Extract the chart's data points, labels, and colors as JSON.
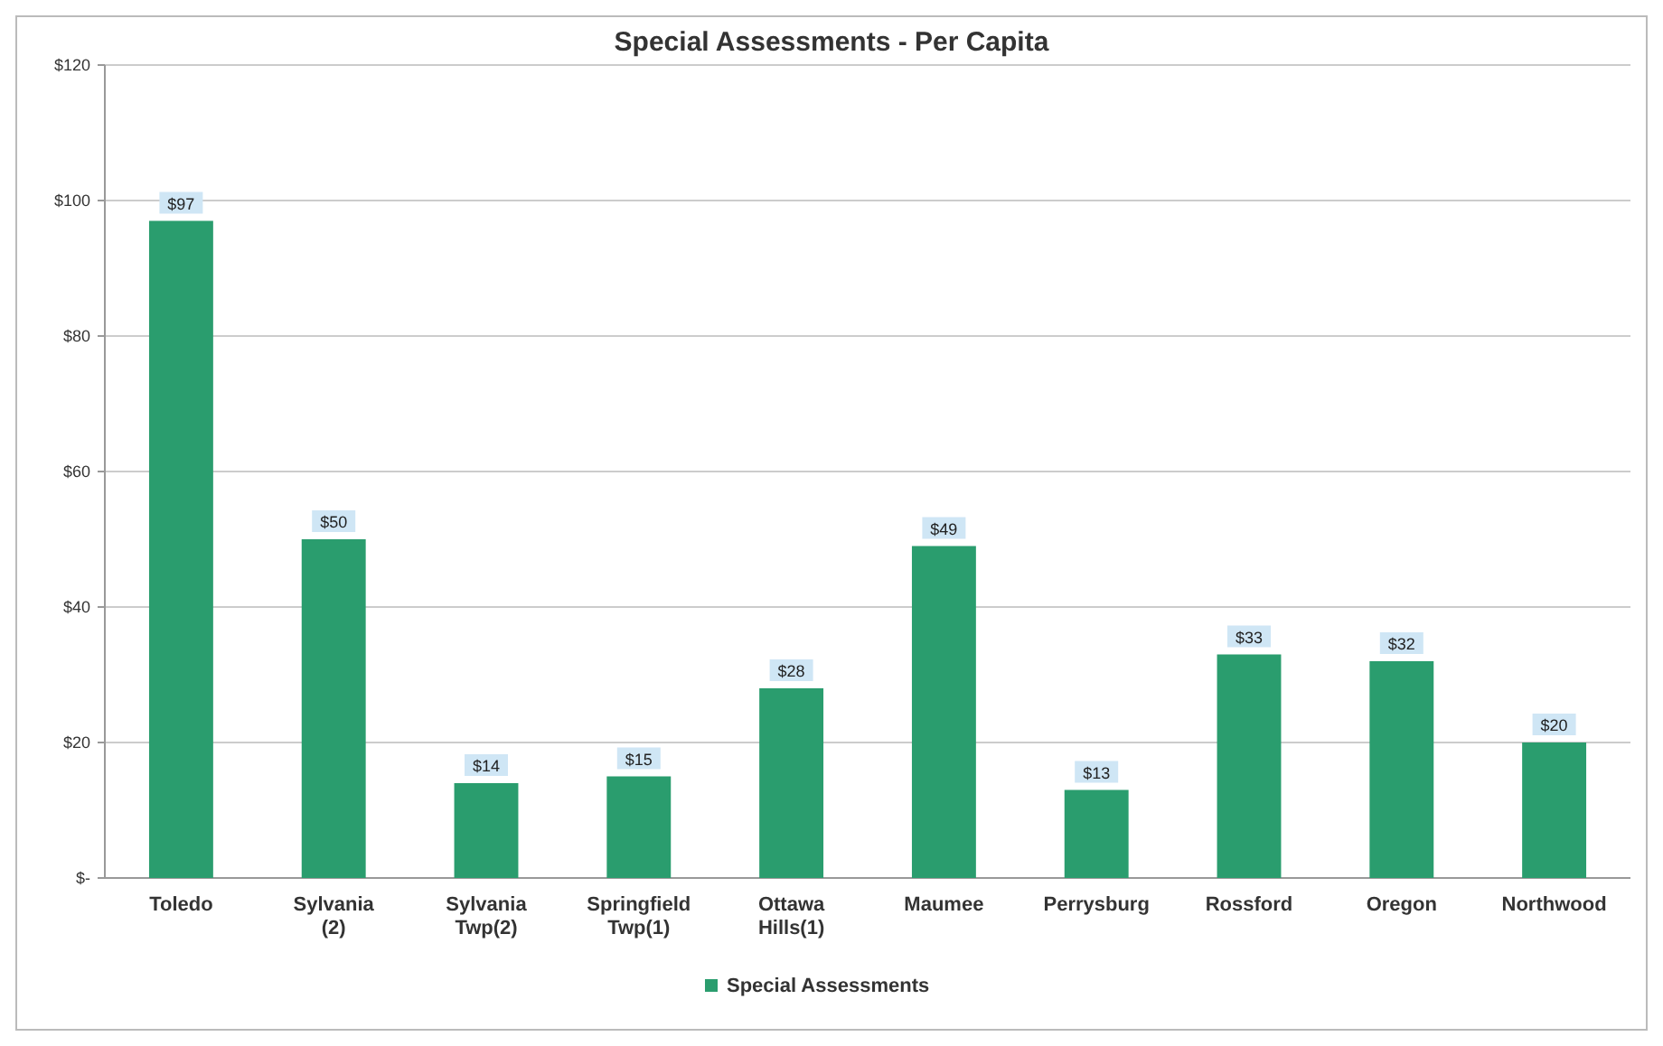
{
  "chart_data": {
    "type": "bar",
    "title": "Special Assessments - Per Capita",
    "categories": [
      "Toledo",
      "Sylvania (2)",
      "Sylvania Twp(2)",
      "Springfield Twp(1)",
      "Ottawa Hills(1)",
      "Maumee",
      "Perrysburg",
      "Rossford",
      "Oregon",
      "Northwood"
    ],
    "series": [
      {
        "name": "Special Assessments",
        "color": "#2a9d6e",
        "values": [
          97,
          50,
          14,
          15,
          28,
          49,
          13,
          33,
          32,
          20
        ],
        "value_labels": [
          "$97",
          "$50",
          "$14",
          "$15",
          "$28",
          "$49",
          "$13",
          "$33",
          "$32",
          "$20"
        ]
      }
    ],
    "ylim": [
      0,
      120
    ],
    "yticks": [
      {
        "value": 0,
        "label": "$-"
      },
      {
        "value": 20,
        "label": "$20"
      },
      {
        "value": 40,
        "label": "$40"
      },
      {
        "value": 60,
        "label": "$60"
      },
      {
        "value": 80,
        "label": "$80"
      },
      {
        "value": 100,
        "label": "$100"
      },
      {
        "value": 120,
        "label": "$120"
      }
    ],
    "grid": "y",
    "legend": "bottom"
  }
}
